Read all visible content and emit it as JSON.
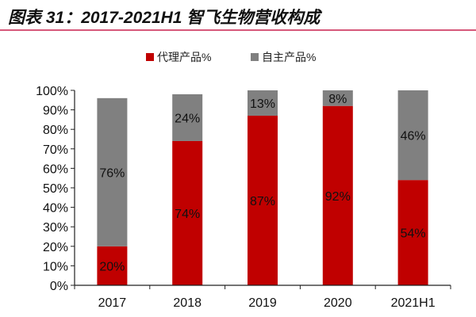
{
  "header": {
    "title": "图表 31：2017-2021H1 智飞生物营收构成"
  },
  "chart_data": {
    "type": "bar",
    "stacked": true,
    "title": "",
    "xlabel": "",
    "ylabel": "",
    "categories": [
      "2017",
      "2018",
      "2019",
      "2020",
      "2021H1"
    ],
    "series": [
      {
        "name": "代理产品%",
        "color": "#c00000",
        "values": [
          20,
          74,
          87,
          92,
          54
        ],
        "labels": [
          "20%",
          "74%",
          "87%",
          "92%",
          "54%"
        ]
      },
      {
        "name": "自主产品%",
        "color": "#808080",
        "values": [
          76,
          24,
          13,
          8,
          46
        ],
        "labels": [
          "76%",
          "24%",
          "13%",
          "8%",
          "46%"
        ]
      }
    ],
    "ylim": [
      0,
      100
    ],
    "yticks": [
      "0%",
      "10%",
      "20%",
      "30%",
      "40%",
      "50%",
      "60%",
      "70%",
      "80%",
      "90%",
      "100%"
    ],
    "grid": false,
    "legend": "top-center"
  }
}
